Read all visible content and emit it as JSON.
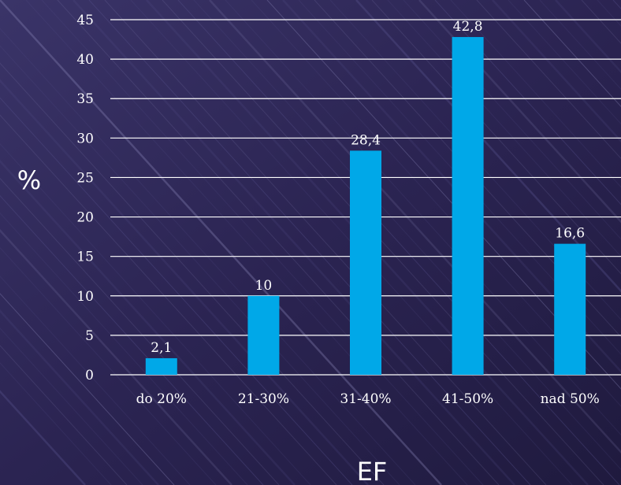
{
  "chart_data": {
    "type": "bar",
    "categories": [
      "do 20%",
      "21-30%",
      "31-40%",
      "41-50%",
      "nad 50%"
    ],
    "values": [
      2.1,
      10,
      28.4,
      42.8,
      16.6
    ],
    "data_labels": [
      "2,1",
      "10",
      "28,4",
      "42,8",
      "16,6"
    ],
    "title": "",
    "xlabel": "EF",
    "ylabel": "%",
    "ylim": [
      0,
      45
    ],
    "yticks": [
      0,
      5,
      10,
      15,
      20,
      25,
      30,
      35,
      40,
      45
    ],
    "grid": true,
    "legend": "none"
  },
  "colors": {
    "bar": "#00a8e8",
    "grid": "#ffffff",
    "text": "#ffffff",
    "background": "#2a2350"
  }
}
